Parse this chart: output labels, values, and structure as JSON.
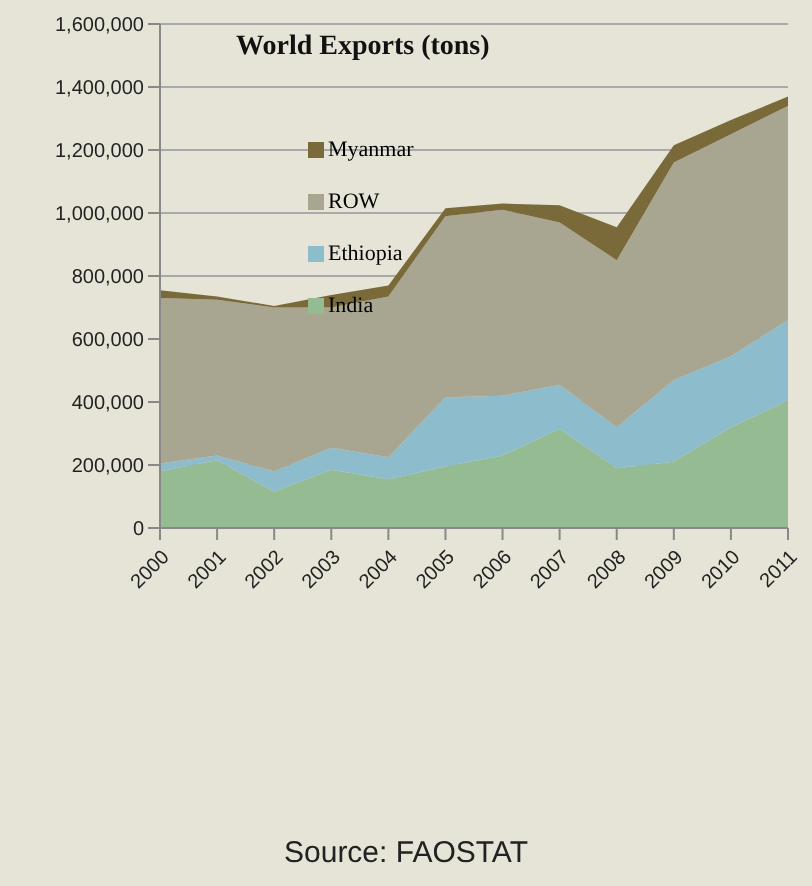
{
  "chart_data": {
    "type": "area",
    "stacked": true,
    "title": "World Exports (tons)",
    "annotations": [
      "Source: FAOSTAT"
    ],
    "categories": [
      "2000",
      "2001",
      "2002",
      "2003",
      "2004",
      "2005",
      "2006",
      "2007",
      "2008",
      "2009",
      "2010",
      "2011"
    ],
    "series": [
      {
        "name": "India",
        "color": "#95bb92",
        "values": [
          180000,
          215000,
          115000,
          185000,
          155000,
          195000,
          230000,
          315000,
          190000,
          210000,
          320000,
          405000
        ]
      },
      {
        "name": "Ethiopia",
        "color": "#8dbccc",
        "values": [
          25000,
          15000,
          65000,
          70000,
          70000,
          220000,
          190000,
          140000,
          130000,
          260000,
          225000,
          255000
        ]
      },
      {
        "name": "ROW",
        "color": "#a8a591",
        "values": [
          525000,
          495000,
          520000,
          445000,
          510000,
          575000,
          590000,
          515000,
          530000,
          690000,
          705000,
          680000
        ]
      },
      {
        "name": "Myanmar",
        "color": "#7a6a3a",
        "values": [
          25000,
          10000,
          5000,
          40000,
          35000,
          25000,
          20000,
          55000,
          105000,
          55000,
          45000,
          30000
        ]
      }
    ],
    "ylim": [
      0,
      1600000
    ],
    "yticks": [
      0,
      {
        "value": 200000,
        "label": "200,000"
      },
      {
        "value": 400000,
        "label": "400,000"
      },
      {
        "value": 600000,
        "label": "600,000"
      },
      {
        "value": 800000,
        "label": "800,000"
      },
      {
        "value": 1000000,
        "label": "1,000,000"
      },
      {
        "value": 1200000,
        "label": "1,200,000"
      },
      {
        "value": 1400000,
        "label": "1,400,000"
      },
      {
        "value": 1600000,
        "label": "1,600,000"
      }
    ],
    "grid": "y",
    "legend": "top left"
  }
}
